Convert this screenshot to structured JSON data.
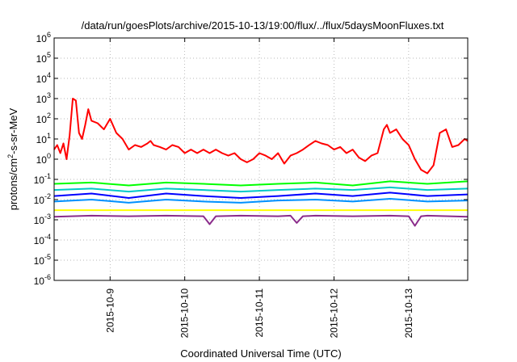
{
  "chart_data": {
    "type": "line",
    "title": "/data/run/goesPlots/archive/2015-10-13/19:00/flux/../flux/5daysMoonFluxes.txt",
    "xlabel": "Coordinated Universal Time (UTC)",
    "ylabel": {
      "prefix": "protons/cm",
      "sup": "2",
      "suffix": "-s-sr-MeV"
    },
    "yscale": "log",
    "ylim": [
      1e-06,
      1000000.0
    ],
    "xlim": [
      "2015-10-08T06:00",
      "2015-10-13T19:00"
    ],
    "grid": true,
    "legend": "none",
    "x_ticks": [
      {
        "label": "2015-10-9",
        "value": "2015-10-09T00:00"
      },
      {
        "label": "2015-10-10",
        "value": "2015-10-10T00:00"
      },
      {
        "label": "2015-10-11",
        "value": "2015-10-11T00:00"
      },
      {
        "label": "2015-10-12",
        "value": "2015-10-12T00:00"
      },
      {
        "label": "2015-10-13",
        "value": "2015-10-13T00:00"
      }
    ],
    "y_ticks": [
      {
        "base": "10",
        "exp": "-6",
        "value": 1e-06
      },
      {
        "base": "10",
        "exp": "-5",
        "value": 1e-05
      },
      {
        "base": "10",
        "exp": "-4",
        "value": 0.0001
      },
      {
        "base": "10",
        "exp": "-3",
        "value": 0.001
      },
      {
        "base": "10",
        "exp": "-2",
        "value": 0.01
      },
      {
        "base": "10",
        "exp": "-1",
        "value": 0.1
      },
      {
        "base": "10",
        "exp": "0",
        "value": 1
      },
      {
        "base": "10",
        "exp": "1",
        "value": 10
      },
      {
        "base": "10",
        "exp": "2",
        "value": 100
      },
      {
        "base": "10",
        "exp": "3",
        "value": 1000
      },
      {
        "base": "10",
        "exp": "4",
        "value": 10000
      },
      {
        "base": "10",
        "exp": "5",
        "value": 100000
      },
      {
        "base": "10",
        "exp": "6",
        "value": 1000000
      }
    ],
    "series": [
      {
        "color": "#ff0000",
        "x": [
          "2015-10-08T06:00",
          "2015-10-08T07:00",
          "2015-10-08T08:00",
          "2015-10-08T09:00",
          "2015-10-08T10:00",
          "2015-10-08T11:00",
          "2015-10-08T12:00",
          "2015-10-08T13:00",
          "2015-10-08T14:00",
          "2015-10-08T15:00",
          "2015-10-08T16:00",
          "2015-10-08T17:00",
          "2015-10-08T18:00",
          "2015-10-08T20:00",
          "2015-10-08T22:00",
          "2015-10-09T00:00",
          "2015-10-09T02:00",
          "2015-10-09T04:00",
          "2015-10-09T06:00",
          "2015-10-09T08:00",
          "2015-10-09T10:00",
          "2015-10-09T12:00",
          "2015-10-09T13:00",
          "2015-10-09T14:00",
          "2015-10-09T16:00",
          "2015-10-09T18:00",
          "2015-10-09T20:00",
          "2015-10-09T22:00",
          "2015-10-10T00:00",
          "2015-10-10T02:00",
          "2015-10-10T04:00",
          "2015-10-10T06:00",
          "2015-10-10T08:00",
          "2015-10-10T10:00",
          "2015-10-10T12:00",
          "2015-10-10T14:00",
          "2015-10-10T16:00",
          "2015-10-10T18:00",
          "2015-10-10T20:00",
          "2015-10-10T22:00",
          "2015-10-11T00:00",
          "2015-10-11T02:00",
          "2015-10-11T04:00",
          "2015-10-11T06:00",
          "2015-10-11T08:00",
          "2015-10-11T10:00",
          "2015-10-11T12:00",
          "2015-10-11T14:00",
          "2015-10-11T16:00",
          "2015-10-11T18:00",
          "2015-10-11T20:00",
          "2015-10-11T22:00",
          "2015-10-12T00:00",
          "2015-10-12T02:00",
          "2015-10-12T04:00",
          "2015-10-12T06:00",
          "2015-10-12T08:00",
          "2015-10-12T10:00",
          "2015-10-12T12:00",
          "2015-10-12T14:00",
          "2015-10-12T16:00",
          "2015-10-12T17:00",
          "2015-10-12T18:00",
          "2015-10-12T20:00",
          "2015-10-12T22:00",
          "2015-10-13T00:00",
          "2015-10-13T02:00",
          "2015-10-13T04:00",
          "2015-10-13T06:00",
          "2015-10-13T08:00",
          "2015-10-13T10:00",
          "2015-10-13T12:00",
          "2015-10-13T14:00",
          "2015-10-13T16:00",
          "2015-10-13T18:00",
          "2015-10-13T19:00"
        ],
        "values": [
          3,
          5,
          2,
          6,
          1,
          15,
          1000,
          800,
          20,
          10,
          50,
          300,
          80,
          60,
          30,
          100,
          20,
          10,
          3,
          5,
          4,
          6,
          8,
          5,
          4,
          3,
          5,
          4,
          2,
          3,
          2,
          3,
          2,
          3,
          2,
          1.5,
          2,
          1,
          0.7,
          1,
          2,
          1.5,
          1,
          2,
          0.6,
          1.5,
          2,
          3,
          5,
          8,
          6,
          5,
          3,
          4,
          2,
          3,
          1.2,
          0.8,
          1.5,
          2,
          30,
          50,
          20,
          30,
          10,
          5,
          1,
          0.3,
          0.2,
          0.5,
          20,
          30,
          4,
          5,
          10,
          8
        ]
      },
      {
        "color": "#00ff00",
        "x": [
          "2015-10-08T06:00",
          "2015-10-08T18:00",
          "2015-10-09T06:00",
          "2015-10-09T18:00",
          "2015-10-10T06:00",
          "2015-10-10T18:00",
          "2015-10-11T06:00",
          "2015-10-11T18:00",
          "2015-10-12T06:00",
          "2015-10-12T18:00",
          "2015-10-13T06:00",
          "2015-10-13T19:00"
        ],
        "values": [
          0.06,
          0.07,
          0.05,
          0.07,
          0.06,
          0.05,
          0.06,
          0.07,
          0.05,
          0.08,
          0.06,
          0.08
        ]
      },
      {
        "color": "#00c8c8",
        "x": [
          "2015-10-08T06:00",
          "2015-10-08T18:00",
          "2015-10-09T06:00",
          "2015-10-09T18:00",
          "2015-10-10T06:00",
          "2015-10-10T18:00",
          "2015-10-11T06:00",
          "2015-10-11T18:00",
          "2015-10-12T06:00",
          "2015-10-12T18:00",
          "2015-10-13T06:00",
          "2015-10-13T19:00"
        ],
        "values": [
          0.03,
          0.035,
          0.025,
          0.035,
          0.03,
          0.025,
          0.03,
          0.035,
          0.03,
          0.04,
          0.03,
          0.035
        ]
      },
      {
        "color": "#0000ff",
        "x": [
          "2015-10-08T06:00",
          "2015-10-08T18:00",
          "2015-10-09T06:00",
          "2015-10-09T18:00",
          "2015-10-10T06:00",
          "2015-10-10T18:00",
          "2015-10-11T06:00",
          "2015-10-11T18:00",
          "2015-10-12T06:00",
          "2015-10-12T18:00",
          "2015-10-13T06:00",
          "2015-10-13T19:00"
        ],
        "values": [
          0.015,
          0.02,
          0.012,
          0.02,
          0.015,
          0.012,
          0.015,
          0.02,
          0.015,
          0.022,
          0.015,
          0.018
        ]
      },
      {
        "color": "#0090ff",
        "x": [
          "2015-10-08T06:00",
          "2015-10-08T18:00",
          "2015-10-09T06:00",
          "2015-10-09T18:00",
          "2015-10-10T06:00",
          "2015-10-10T18:00",
          "2015-10-11T06:00",
          "2015-10-11T18:00",
          "2015-10-12T06:00",
          "2015-10-12T18:00",
          "2015-10-13T06:00",
          "2015-10-13T19:00"
        ],
        "values": [
          0.008,
          0.01,
          0.007,
          0.01,
          0.008,
          0.007,
          0.009,
          0.01,
          0.008,
          0.011,
          0.008,
          0.009
        ]
      },
      {
        "color": "#ffff00",
        "x": [
          "2015-10-08T06:00",
          "2015-10-09T06:00",
          "2015-10-10T06:00",
          "2015-10-11T06:00",
          "2015-10-12T06:00",
          "2015-10-13T06:00",
          "2015-10-13T19:00"
        ],
        "values": [
          0.003,
          0.003,
          0.003,
          0.003,
          0.003,
          0.003,
          0.003
        ]
      },
      {
        "color": "#8b2c8b",
        "x": [
          "2015-10-08T06:00",
          "2015-10-08T18:00",
          "2015-10-09T06:00",
          "2015-10-09T18:00",
          "2015-10-10T06:00",
          "2015-10-10T08:00",
          "2015-10-10T10:00",
          "2015-10-10T18:00",
          "2015-10-11T06:00",
          "2015-10-11T10:00",
          "2015-10-11T12:00",
          "2015-10-11T14:00",
          "2015-10-11T18:00",
          "2015-10-12T06:00",
          "2015-10-12T18:00",
          "2015-10-13T00:00",
          "2015-10-13T02:00",
          "2015-10-13T04:00",
          "2015-10-13T06:00",
          "2015-10-13T19:00"
        ],
        "values": [
          0.0014,
          0.0016,
          0.0015,
          0.0016,
          0.0015,
          0.0006,
          0.0015,
          0.0016,
          0.0015,
          0.0016,
          0.0007,
          0.0015,
          0.0016,
          0.0015,
          0.0016,
          0.0015,
          0.0005,
          0.0015,
          0.0016,
          0.0014
        ]
      }
    ]
  }
}
